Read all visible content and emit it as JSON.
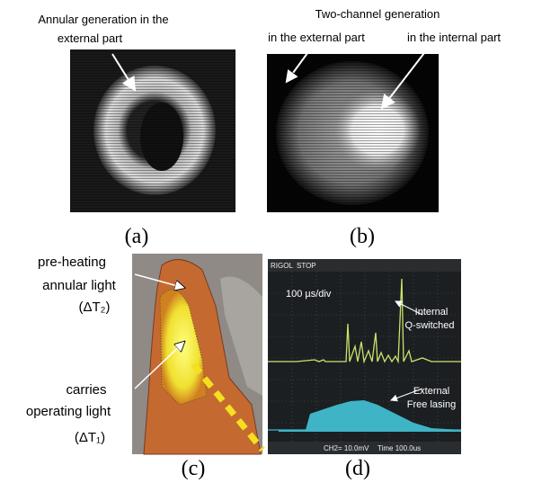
{
  "panel_a": {
    "label_lines": [
      "Annular generation in the",
      "external part"
    ],
    "caption": "(a)"
  },
  "panel_b": {
    "title": "Two-channel generation",
    "label_external": "in the external part",
    "label_internal": "in the internal part",
    "caption": "(b)"
  },
  "panel_c": {
    "upper_lines": [
      "pre-heating",
      "annular light",
      "(ΔT₂)"
    ],
    "lower_lines": [
      "carries",
      "operating light",
      "(ΔT₁)"
    ],
    "caption": "(c)"
  },
  "panel_d": {
    "scope_header": [
      "RIGOL",
      "STOP"
    ],
    "scope_footer": [
      "CH2= 10.0mV",
      "Time 100.0us"
    ],
    "timebase": "100 µs/div",
    "internal_lines": [
      "Internal",
      "Q-switched"
    ],
    "external_lines": [
      "External",
      "Free lasing"
    ],
    "caption": "(d)"
  }
}
